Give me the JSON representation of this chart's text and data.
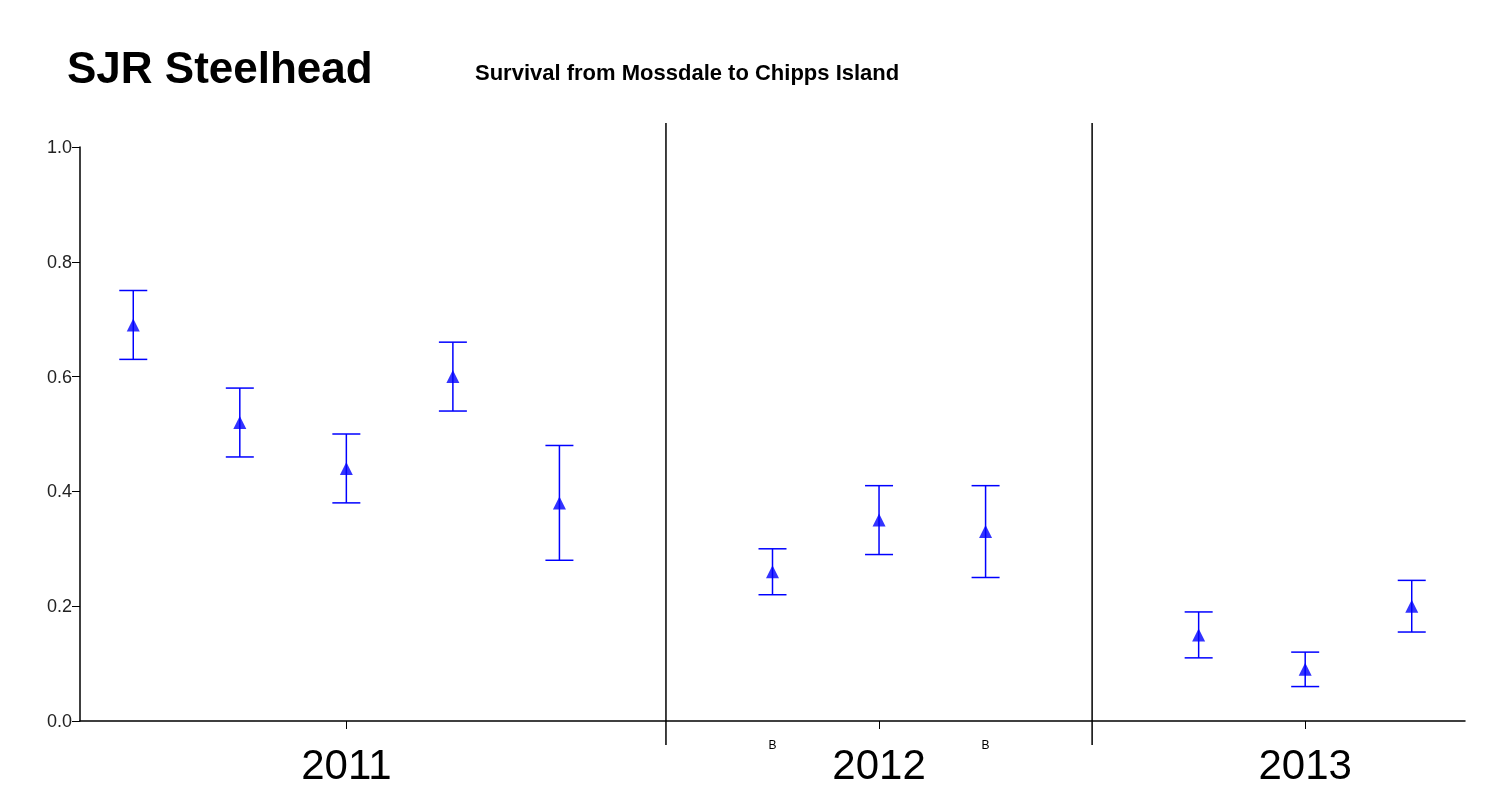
{
  "chart_data": {
    "type": "scatter",
    "title": "SJR Steelhead",
    "subtitle": "Survival from Mossdale to Chipps Island",
    "categories": [
      null,
      null,
      "2011",
      null,
      null,
      null,
      null,
      "2012",
      null,
      null,
      null,
      "2013",
      null
    ],
    "values": [
      0.69,
      0.52,
      0.44,
      0.6,
      0.38,
      null,
      0.26,
      0.35,
      0.33,
      null,
      0.15,
      0.09,
      0.2
    ],
    "errors": [
      [
        0.63,
        0.75
      ],
      [
        0.46,
        0.58
      ],
      [
        0.38,
        0.5
      ],
      [
        0.54,
        0.66
      ],
      [
        0.28,
        0.48
      ],
      null,
      [
        0.22,
        0.3
      ],
      [
        0.29,
        0.41
      ],
      [
        0.25,
        0.41
      ],
      null,
      [
        0.11,
        0.19
      ],
      [
        0.06,
        0.12
      ],
      [
        0.155,
        0.245
      ]
    ],
    "color": "#0000ff",
    "marker": "triangle",
    "ylim": [
      0,
      1
    ],
    "yticks": [
      {
        "value": 0,
        "label": "0.0"
      },
      {
        "value": 0.2,
        "label": "0.2"
      },
      {
        "value": 0.4,
        "label": "0.4"
      },
      {
        "value": 0.6,
        "label": "0.6"
      },
      {
        "value": 0.8,
        "label": "0.8"
      },
      {
        "value": 1,
        "label": "1.0"
      }
    ],
    "annotations": [
      "B",
      "B"
    ]
  }
}
